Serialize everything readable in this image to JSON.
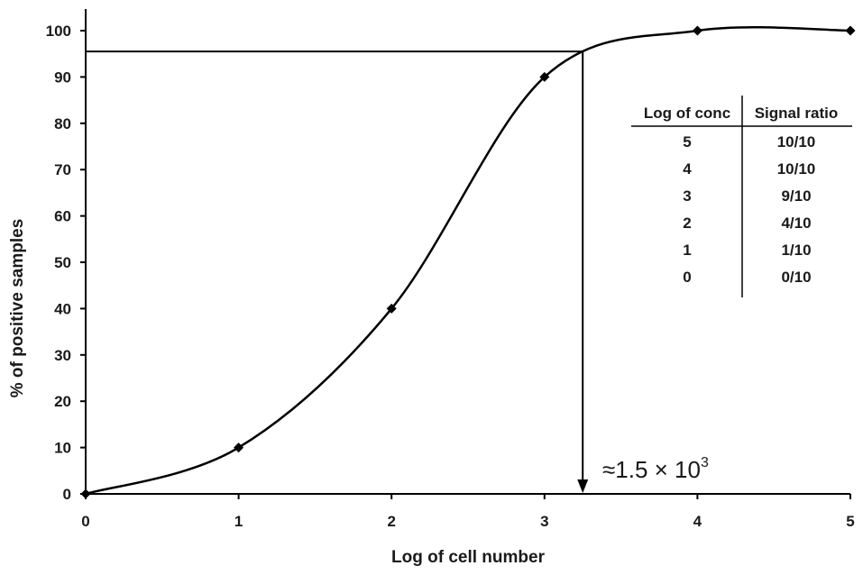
{
  "chart_data": {
    "type": "line",
    "xlabel": "Log of cell number",
    "ylabel": "% of positive samples",
    "xlim": [
      0,
      5
    ],
    "ylim": [
      0,
      100
    ],
    "x_ticks": [
      "0",
      "1",
      "2",
      "3",
      "4",
      "5"
    ],
    "y_ticks": [
      "0",
      "10",
      "20",
      "30",
      "40",
      "50",
      "60",
      "70",
      "80",
      "90",
      "100"
    ],
    "grid": false,
    "series": [
      {
        "x": [
          0,
          1,
          2,
          3,
          4,
          5
        ],
        "y": [
          0,
          10,
          40,
          90,
          100,
          100
        ],
        "color": "#000000",
        "marker": "diamond"
      }
    ],
    "annotation": {
      "text": "≈1.5 × 10",
      "superscript": "3",
      "x": 3.25,
      "y": 95.5
    },
    "inset_table": {
      "headers": [
        "Log of conc",
        "Signal ratio"
      ],
      "rows": [
        [
          "5",
          "10/10"
        ],
        [
          "4",
          "10/10"
        ],
        [
          "3",
          "9/10"
        ],
        [
          "2",
          "4/10"
        ],
        [
          "1",
          "1/10"
        ],
        [
          "0",
          "0/10"
        ]
      ]
    }
  }
}
